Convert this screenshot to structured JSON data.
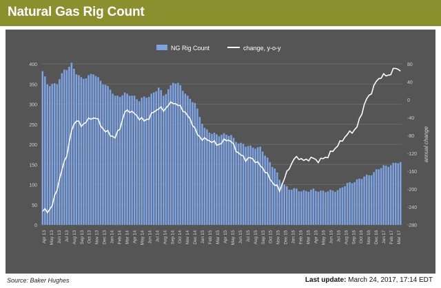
{
  "header": {
    "title": "Natural Gas Rig Count"
  },
  "footer": {
    "source": "Source: Baker Hughes",
    "last_update_label": "Last update:",
    "last_update_value": "March 24, 2017, 17:14 EDT"
  },
  "colors": {
    "title_bar": "#8b8f2e",
    "panel": "#555555",
    "bars": "#7ea3e3",
    "line": "#ffffff",
    "axis_text": "#d0d0d0"
  },
  "chart_data": {
    "type": "bar",
    "series": [
      {
        "name": "NG Rig Count",
        "type": "bar",
        "axis": "left",
        "anchors": [
          [
            0,
            380
          ],
          [
            2,
            350
          ],
          [
            6,
            350
          ],
          [
            9,
            385
          ],
          [
            12,
            400
          ],
          [
            14,
            375
          ],
          [
            16,
            365
          ],
          [
            19,
            370
          ],
          [
            21,
            375
          ],
          [
            24,
            360
          ],
          [
            28,
            335
          ],
          [
            30,
            320
          ],
          [
            34,
            325
          ],
          [
            38,
            320
          ],
          [
            40,
            310
          ],
          [
            44,
            320
          ],
          [
            48,
            340
          ],
          [
            50,
            320
          ],
          [
            54,
            355
          ],
          [
            57,
            345
          ],
          [
            60,
            320
          ],
          [
            63,
            300
          ],
          [
            65,
            270
          ],
          [
            67,
            240
          ],
          [
            70,
            225
          ],
          [
            75,
            225
          ],
          [
            78,
            220
          ],
          [
            81,
            205
          ],
          [
            84,
            195
          ],
          [
            87,
            195
          ],
          [
            90,
            190
          ],
          [
            93,
            165
          ],
          [
            96,
            140
          ],
          [
            98,
            110
          ],
          [
            100,
            100
          ],
          [
            102,
            90
          ],
          [
            106,
            85
          ],
          [
            110,
            85
          ],
          [
            115,
            85
          ],
          [
            119,
            82
          ],
          [
            123,
            90
          ],
          [
            126,
            100
          ],
          [
            129,
            110
          ],
          [
            132,
            115
          ],
          [
            135,
            125
          ],
          [
            138,
            135
          ],
          [
            141,
            145
          ],
          [
            144,
            150
          ],
          [
            148,
            155
          ]
        ]
      },
      {
        "name": "change, y-o-y",
        "type": "line",
        "axis": "right",
        "anchors": [
          [
            0,
            -250
          ],
          [
            2,
            -250
          ],
          [
            4,
            -235
          ],
          [
            6,
            -200
          ],
          [
            8,
            -160
          ],
          [
            10,
            -120
          ],
          [
            12,
            -70
          ],
          [
            14,
            -45
          ],
          [
            16,
            -60
          ],
          [
            18,
            -45
          ],
          [
            20,
            -45
          ],
          [
            22,
            -40
          ],
          [
            24,
            -55
          ],
          [
            26,
            -70
          ],
          [
            28,
            -80
          ],
          [
            30,
            -85
          ],
          [
            32,
            -60
          ],
          [
            34,
            -30
          ],
          [
            36,
            -25
          ],
          [
            38,
            -30
          ],
          [
            40,
            -40
          ],
          [
            42,
            -50
          ],
          [
            44,
            -40
          ],
          [
            46,
            -25
          ],
          [
            48,
            -20
          ],
          [
            50,
            -25
          ],
          [
            52,
            -10
          ],
          [
            54,
            -5
          ],
          [
            56,
            -15
          ],
          [
            58,
            -20
          ],
          [
            60,
            -35
          ],
          [
            62,
            -55
          ],
          [
            64,
            -80
          ],
          [
            66,
            -85
          ],
          [
            68,
            -90
          ],
          [
            70,
            -95
          ],
          [
            72,
            -100
          ],
          [
            74,
            -95
          ],
          [
            76,
            -90
          ],
          [
            78,
            -95
          ],
          [
            80,
            -110
          ],
          [
            82,
            -125
          ],
          [
            84,
            -135
          ],
          [
            86,
            -130
          ],
          [
            88,
            -135
          ],
          [
            90,
            -150
          ],
          [
            92,
            -160
          ],
          [
            94,
            -175
          ],
          [
            96,
            -190
          ],
          [
            98,
            -205
          ],
          [
            100,
            -175
          ],
          [
            102,
            -150
          ],
          [
            104,
            -135
          ],
          [
            106,
            -130
          ],
          [
            108,
            -135
          ],
          [
            110,
            -132
          ],
          [
            112,
            -134
          ],
          [
            114,
            -136
          ],
          [
            116,
            -130
          ],
          [
            118,
            -128
          ],
          [
            120,
            -115
          ],
          [
            122,
            -100
          ],
          [
            124,
            -90
          ],
          [
            126,
            -80
          ],
          [
            128,
            -70
          ],
          [
            130,
            -60
          ],
          [
            132,
            -30
          ],
          [
            134,
            0
          ],
          [
            136,
            20
          ],
          [
            138,
            40
          ],
          [
            140,
            50
          ],
          [
            142,
            55
          ],
          [
            144,
            60
          ],
          [
            146,
            70
          ],
          [
            148,
            65
          ]
        ]
      }
    ],
    "x_tick_labels": [
      "Apr 13",
      "May 13",
      "Jun 13",
      "Jul 13",
      "Aug 13",
      "Sep 13",
      "Oct 13",
      "Nov 13",
      "Dec 13",
      "Jan 14",
      "Feb 14",
      "Mar 14",
      "Apr 14",
      "May 14",
      "Jun 14",
      "Jul 14",
      "Aug 14",
      "Sep 14",
      "Oct 14",
      "Nov 14",
      "Dec 14",
      "Jan 15",
      "Feb 15",
      "Mar 15",
      "Apr 15",
      "May 15",
      "Jun 15",
      "Jul 15",
      "Aug 15",
      "Sep 15",
      "Oct 15",
      "Nov 15",
      "Dec 15",
      "Jan 16",
      "Feb 16",
      "Mar 16",
      "Apr 16",
      "May 16",
      "Jun 16",
      "Jul 16",
      "Aug 16",
      "Sep 16",
      "Oct 16",
      "Nov 16",
      "Dec 16",
      "Jan 17",
      "Feb 17",
      "Mar 17"
    ],
    "ylim_left": [
      0,
      400
    ],
    "left_ticks": [
      0,
      50,
      100,
      150,
      200,
      250,
      300,
      350,
      400
    ],
    "ylim_right": [
      -280,
      80
    ],
    "right_ticks": [
      -280,
      -240,
      -200,
      -160,
      -120,
      -80,
      -40,
      0,
      40,
      80
    ],
    "ylabel_right": "annual change",
    "grid": true,
    "legend_position": "top-center"
  }
}
